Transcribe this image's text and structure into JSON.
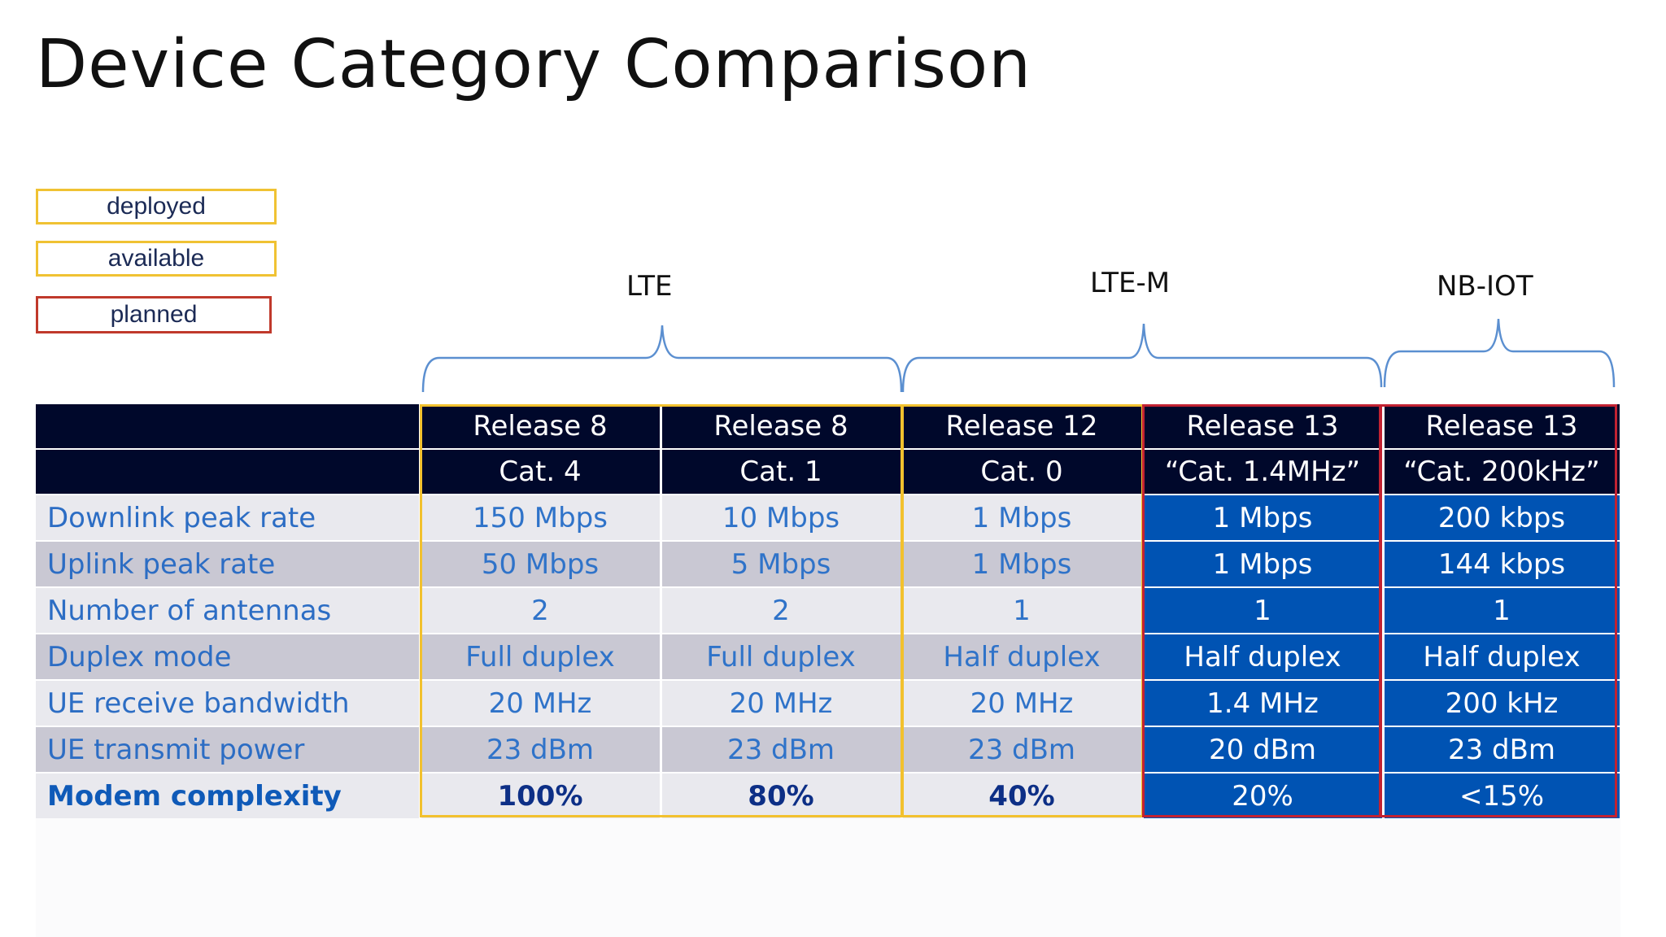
{
  "title": "Device Category Comparison",
  "legend": {
    "deployed": "deployed",
    "available": "available",
    "planned": "planned"
  },
  "groups": {
    "lte": "LTE",
    "ltem": "LTE-M",
    "nbiot": "NB-IOT"
  },
  "colors": {
    "header_bg": "#00082b",
    "blue_cells": "#0053b3",
    "deployed_outline": "#f2c12e",
    "planned_outline": "#c22232"
  },
  "table": {
    "columns": [
      {
        "release": "Release 8",
        "category": "Cat. 4"
      },
      {
        "release": "Release 8",
        "category": "Cat. 1"
      },
      {
        "release": "Release 12",
        "category": "Cat. 0"
      },
      {
        "release": "Release 13",
        "category": "“Cat. 1.4MHz”"
      },
      {
        "release": "Release 13",
        "category": "“Cat. 200kHz”"
      }
    ],
    "rows": [
      {
        "label": "Downlink peak rate",
        "values": [
          "150 Mbps",
          "10 Mbps",
          "1 Mbps",
          "1 Mbps",
          "200 kbps"
        ]
      },
      {
        "label": "Uplink peak rate",
        "values": [
          "50 Mbps",
          "5 Mbps",
          "1 Mbps",
          "1 Mbps",
          "144 kbps"
        ]
      },
      {
        "label": "Number of antennas",
        "values": [
          "2",
          "2",
          "1",
          "1",
          "1"
        ]
      },
      {
        "label": "Duplex mode",
        "values": [
          "Full duplex",
          "Full duplex",
          "Half duplex",
          "Half duplex",
          "Half duplex"
        ]
      },
      {
        "label": "UE receive bandwidth",
        "values": [
          "20 MHz",
          "20 MHz",
          "20 MHz",
          "1.4 MHz",
          "200 kHz"
        ]
      },
      {
        "label": "UE transmit power",
        "values": [
          "23 dBm",
          "23 dBm",
          "23 dBm",
          "20 dBm",
          "23 dBm"
        ]
      },
      {
        "label": "Modem complexity",
        "values": [
          "100%",
          "80%",
          "40%",
          "20%",
          "<15%"
        ]
      }
    ]
  }
}
